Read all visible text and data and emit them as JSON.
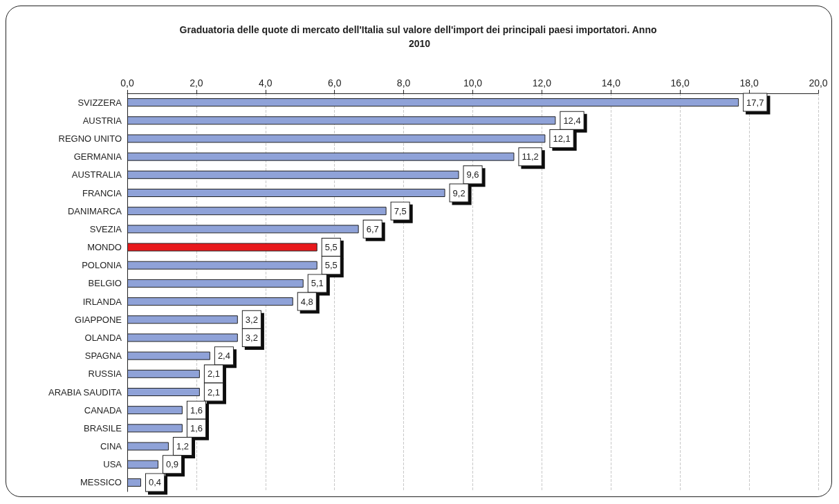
{
  "chart_data": {
    "type": "bar",
    "orientation": "horizontal",
    "title": "Graduatoria delle quote di mercato dell'Italia sul valore dell'import dei principali paesi importatori. Anno 2010",
    "categories": [
      "SVIZZERA",
      "AUSTRIA",
      "REGNO UNITO",
      "GERMANIA",
      "AUSTRALIA",
      "FRANCIA",
      "DANIMARCA",
      "SVEZIA",
      "MONDO",
      "POLONIA",
      "BELGIO",
      "IRLANDA",
      "GIAPPONE",
      "OLANDA",
      "SPAGNA",
      "RUSSIA",
      "ARABIA SAUDITA",
      "CANADA",
      "BRASILE",
      "CINA",
      "USA",
      "MESSICO"
    ],
    "values": [
      17.7,
      12.4,
      12.1,
      11.2,
      9.6,
      9.2,
      7.5,
      6.7,
      5.5,
      5.5,
      5.1,
      4.8,
      3.2,
      3.2,
      2.4,
      2.1,
      2.1,
      1.6,
      1.6,
      1.2,
      0.9,
      0.4
    ],
    "value_labels": [
      "17,7",
      "12,4",
      "12,1",
      "11,2",
      "9,6",
      "9,2",
      "7,5",
      "6,7",
      "5,5",
      "5,5",
      "5,1",
      "4,8",
      "3,2",
      "3,2",
      "2,4",
      "2,1",
      "2,1",
      "1,6",
      "1,6",
      "1,2",
      "0,9",
      "0,4"
    ],
    "colors": [
      "#8fa2d8",
      "#8fa2d8",
      "#8fa2d8",
      "#8fa2d8",
      "#8fa2d8",
      "#8fa2d8",
      "#8fa2d8",
      "#8fa2d8",
      "#e8191c",
      "#8fa2d8",
      "#8fa2d8",
      "#8fa2d8",
      "#8fa2d8",
      "#8fa2d8",
      "#8fa2d8",
      "#8fa2d8",
      "#8fa2d8",
      "#8fa2d8",
      "#8fa2d8",
      "#8fa2d8",
      "#8fa2d8",
      "#8fa2d8"
    ],
    "xlim": [
      0,
      20
    ],
    "xticks": [
      {
        "value": 0,
        "label": "0,0"
      },
      {
        "value": 2,
        "label": "2,0"
      },
      {
        "value": 4,
        "label": "4,0"
      },
      {
        "value": 6,
        "label": "6,0"
      },
      {
        "value": 8,
        "label": "8,0"
      },
      {
        "value": 10,
        "label": "10,0"
      },
      {
        "value": 12,
        "label": "12,0"
      },
      {
        "value": 14,
        "label": "14,0"
      },
      {
        "value": 16,
        "label": "16,0"
      },
      {
        "value": 18,
        "label": "18,0"
      },
      {
        "value": 20,
        "label": "20,0"
      }
    ],
    "grid": "x"
  }
}
